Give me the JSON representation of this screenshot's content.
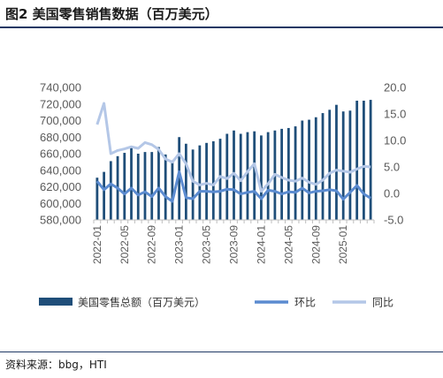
{
  "header": {
    "title": "图2  美国零售销售数据（百万美元）"
  },
  "footer": {
    "source": "资料来源：bbg，HTI"
  },
  "colors": {
    "bar": "#1f4e79",
    "mom_line": "#5b8bd0",
    "yoy_line": "#b4c7e7",
    "rule": "#1f3864"
  },
  "chart_data": {
    "type": "bar",
    "title": "",
    "y_left": {
      "min": 580000,
      "max": 740000,
      "step": 20000,
      "ticks": [
        "580,000",
        "600,000",
        "620,000",
        "640,000",
        "660,000",
        "680,000",
        "700,000",
        "720,000",
        "740,000"
      ]
    },
    "y_right": {
      "min": -5,
      "max": 20,
      "step": 5,
      "ticks": [
        "-5.0",
        "0.0",
        "5.0",
        "10.0",
        "15.0",
        "20.0"
      ]
    },
    "x_tick_labels": [
      "2022-01",
      "2022-05",
      "2022-09",
      "2023-01",
      "2023-05",
      "2023-09",
      "2024-01",
      "2024-05",
      "2024-09",
      "2025-01"
    ],
    "x_tick_index": [
      0,
      4,
      8,
      12,
      16,
      20,
      24,
      28,
      32,
      36
    ],
    "categories": [
      "2022-01",
      "2022-02",
      "2022-03",
      "2022-04",
      "2022-05",
      "2022-06",
      "2022-07",
      "2022-08",
      "2022-09",
      "2022-10",
      "2022-11",
      "2022-12",
      "2023-01",
      "2023-02",
      "2023-03",
      "2023-04",
      "2023-05",
      "2023-06",
      "2023-07",
      "2023-08",
      "2023-09",
      "2023-10",
      "2023-11",
      "2023-12",
      "2024-01",
      "2024-02",
      "2024-03",
      "2024-04",
      "2024-05",
      "2024-06",
      "2024-07",
      "2024-08",
      "2024-09",
      "2024-10",
      "2024-11",
      "2024-12",
      "2025-01",
      "2025-02",
      "2025-03",
      "2025-04",
      "2025-05"
    ],
    "series": [
      {
        "name": "美国零售总额（百万美元）",
        "axis": "left",
        "kind": "bar",
        "values": [
          631000,
          638000,
          651000,
          657000,
          661000,
          667000,
          660000,
          662000,
          662000,
          668000,
          659000,
          652000,
          680000,
          672000,
          665000,
          670000,
          673000,
          675000,
          678000,
          684000,
          688000,
          684000,
          686000,
          687000,
          682000,
          686000,
          688000,
          690000,
          691000,
          693000,
          700000,
          701000,
          704000,
          709000,
          713000,
          719000,
          711000,
          712000,
          724000,
          724000,
          725000
        ]
      },
      {
        "name": "环比",
        "axis": "right",
        "kind": "line",
        "values": [
          2.3,
          0.7,
          1.8,
          1.0,
          -0.1,
          1.0,
          -0.3,
          0.3,
          -0.6,
          1.0,
          -0.6,
          -1.5,
          4.1,
          -0.8,
          -1.0,
          0.4,
          0.4,
          0.3,
          0.4,
          0.8,
          0.7,
          -0.1,
          0.2,
          0.4,
          -1.0,
          0.6,
          0.4,
          -0.1,
          0.3,
          0.2,
          1.0,
          0.1,
          0.4,
          0.5,
          0.7,
          0.5,
          -1.1,
          0.2,
          1.5,
          -0.1,
          -0.9
        ]
      },
      {
        "name": "同比",
        "axis": "right",
        "kind": "line",
        "values": [
          13.0,
          17.0,
          7.5,
          8.1,
          8.4,
          8.8,
          8.5,
          9.6,
          9.2,
          8.3,
          6.5,
          5.9,
          7.5,
          5.6,
          2.3,
          1.6,
          1.9,
          1.6,
          3.2,
          2.8,
          3.8,
          2.4,
          4.1,
          5.6,
          0.4,
          1.8,
          3.6,
          3.0,
          2.5,
          2.3,
          2.9,
          2.1,
          1.7,
          2.5,
          3.8,
          4.4,
          4.2,
          4.0,
          4.6,
          5.1,
          5.0
        ]
      }
    ]
  }
}
